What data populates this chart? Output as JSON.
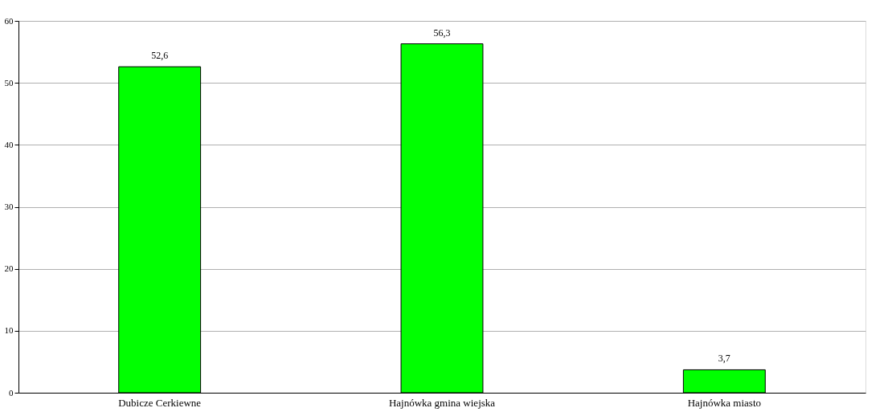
{
  "chart_data": {
    "type": "bar",
    "categories": [
      "Dubicze Cerkiewne",
      "Hajnówka gmina wiejska",
      "Hajnówka miasto"
    ],
    "values": [
      52.6,
      56.3,
      3.7
    ],
    "value_labels": [
      "52,6",
      "56,3",
      "3,7"
    ],
    "color": "#00ff00",
    "ylim": [
      0,
      60
    ],
    "yticks": [
      0,
      10,
      20,
      30,
      40,
      50,
      60
    ],
    "grid": "y"
  }
}
